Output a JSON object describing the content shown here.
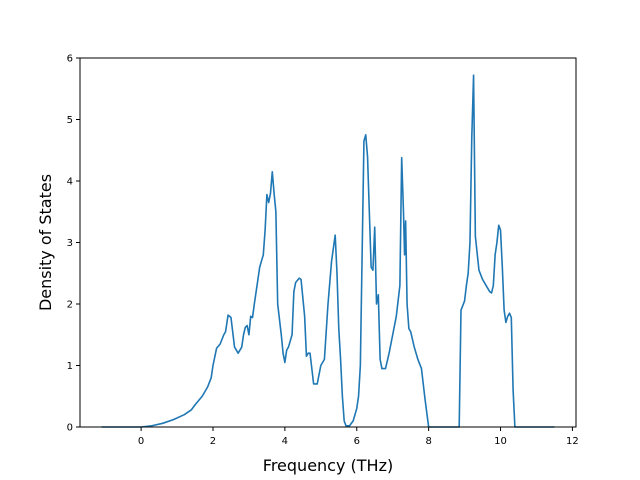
{
  "chart_data": {
    "type": "line",
    "title": "",
    "xlabel": "Frequency (THz)",
    "ylabel": "Density of States",
    "xlim": [
      -1.7,
      12.1
    ],
    "ylim": [
      0,
      6
    ],
    "xticks": [
      0,
      2,
      4,
      6,
      8,
      10,
      12
    ],
    "xtick_labels": [
      "0",
      "2",
      "4",
      "6",
      "8",
      "10",
      "12"
    ],
    "yticks": [
      0,
      1,
      2,
      3,
      4,
      5,
      6
    ],
    "ytick_labels": [
      "0",
      "1",
      "2",
      "3",
      "4",
      "5",
      "6"
    ],
    "grid": false,
    "legend": "none",
    "series": [
      {
        "color": "#1f77b4",
        "x": [
          -1.1,
          0.0,
          0.3,
          0.6,
          0.9,
          1.2,
          1.4,
          1.5,
          1.7,
          1.85,
          1.95,
          2.0,
          2.1,
          2.2,
          2.3,
          2.35,
          2.42,
          2.5,
          2.6,
          2.7,
          2.8,
          2.85,
          2.9,
          2.95,
          3.0,
          3.05,
          3.1,
          3.15,
          3.2,
          3.3,
          3.4,
          3.45,
          3.5,
          3.55,
          3.6,
          3.65,
          3.7,
          3.75,
          3.8,
          3.9,
          3.95,
          4.0,
          4.05,
          4.1,
          4.2,
          4.25,
          4.3,
          4.4,
          4.45,
          4.5,
          4.55,
          4.6,
          4.65,
          4.7,
          4.8,
          4.9,
          5.0,
          5.1,
          5.2,
          5.3,
          5.4,
          5.45,
          5.5,
          5.55,
          5.6,
          5.65,
          5.7,
          5.8,
          5.9,
          6.0,
          6.05,
          6.1,
          6.2,
          6.25,
          6.3,
          6.35,
          6.4,
          6.45,
          6.5,
          6.55,
          6.6,
          6.65,
          6.7,
          6.75,
          6.8,
          6.9,
          7.0,
          7.1,
          7.2,
          7.25,
          7.3,
          7.33,
          7.36,
          7.4,
          7.45,
          7.5,
          7.6,
          7.7,
          7.8,
          7.9,
          8.0,
          8.05,
          8.1,
          8.5,
          8.85,
          8.9,
          9.0,
          9.05,
          9.1,
          9.15,
          9.2,
          9.25,
          9.3,
          9.4,
          9.5,
          9.6,
          9.7,
          9.75,
          9.8,
          9.85,
          9.9,
          9.95,
          10.0,
          10.05,
          10.1,
          10.15,
          10.2,
          10.25,
          10.3,
          10.35,
          10.4,
          10.45,
          10.5,
          11.5
        ],
        "y": [
          0.0,
          0.0,
          0.02,
          0.06,
          0.12,
          0.2,
          0.28,
          0.36,
          0.5,
          0.65,
          0.8,
          1.0,
          1.28,
          1.35,
          1.5,
          1.55,
          1.82,
          1.78,
          1.3,
          1.2,
          1.3,
          1.5,
          1.62,
          1.65,
          1.5,
          1.8,
          1.78,
          2.0,
          2.2,
          2.6,
          2.8,
          3.2,
          3.78,
          3.65,
          3.8,
          4.15,
          3.8,
          3.5,
          2.0,
          1.5,
          1.2,
          1.05,
          1.25,
          1.3,
          1.5,
          2.2,
          2.35,
          2.42,
          2.4,
          2.1,
          1.8,
          1.15,
          1.2,
          1.2,
          0.7,
          0.7,
          1.0,
          1.1,
          2.0,
          2.7,
          3.12,
          2.5,
          1.6,
          1.1,
          0.5,
          0.1,
          0.02,
          0.02,
          0.1,
          0.3,
          0.5,
          1.0,
          4.65,
          4.75,
          4.4,
          3.5,
          2.6,
          2.55,
          3.25,
          2.0,
          2.15,
          1.1,
          0.95,
          0.95,
          0.95,
          1.2,
          1.5,
          1.8,
          2.3,
          4.38,
          3.5,
          2.8,
          3.35,
          2.0,
          1.6,
          1.55,
          1.3,
          1.1,
          0.95,
          0.45,
          0.0,
          0.0,
          0.0,
          0.0,
          0.0,
          1.9,
          2.05,
          2.3,
          2.5,
          3.0,
          4.7,
          5.72,
          3.1,
          2.55,
          2.4,
          2.3,
          2.2,
          2.18,
          2.3,
          2.8,
          3.0,
          3.28,
          3.2,
          2.6,
          1.9,
          1.7,
          1.8,
          1.85,
          1.78,
          0.6,
          0.0,
          0.0,
          0.0,
          0.0
        ]
      }
    ]
  }
}
